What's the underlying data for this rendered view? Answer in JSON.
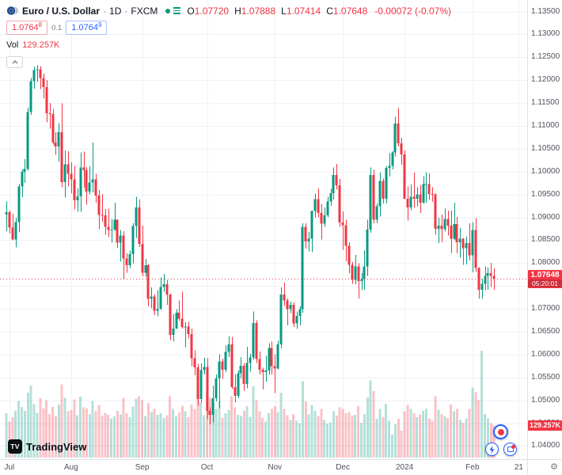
{
  "header": {
    "symbol": "Euro / U.S. Dollar",
    "separator": "·",
    "interval": "1D",
    "exchange": "FXCM",
    "ohlc": {
      "o_label": "O",
      "o": "1.07720",
      "h_label": "H",
      "h": "1.07888",
      "l_label": "L",
      "l": "1.07414",
      "c_label": "C",
      "c": "1.07648",
      "change": "-0.00072 (-0.07%)"
    }
  },
  "quote": {
    "bid": "1.0764",
    "bid_sup": "8",
    "spread": "0.1",
    "ask": "1.0764",
    "ask_sup": "9"
  },
  "volume_row": {
    "label": "Vol",
    "value": "129.257K"
  },
  "logo": {
    "mark": "TV",
    "text": "TradingView"
  },
  "chart_data": {
    "type": "candlestick",
    "title": "Euro / U.S. Dollar · 1D · FXCM",
    "symbol": "EUR/USD",
    "interval": "1D",
    "exchange": "FXCM",
    "last_price": 1.07648,
    "price_label": "1.07648",
    "countdown": "05:20:01",
    "volume_label": "129.257K",
    "last_volume_k": 129.257,
    "ylim": [
      1.0375,
      1.1375
    ],
    "grid": true,
    "legend_position": "top-left",
    "y_ticks": [
      "1.13500",
      "1.13000",
      "1.12500",
      "1.12000",
      "1.11500",
      "1.11000",
      "1.10500",
      "1.10000",
      "1.09500",
      "1.09000",
      "1.08500",
      "1.08000",
      "1.07500",
      "1.07000",
      "1.06500",
      "1.06000",
      "1.05500",
      "1.05000",
      "1.04500",
      "1.04000"
    ],
    "x_ticks": [
      {
        "label": "Jul",
        "index": 1
      },
      {
        "label": "Aug",
        "index": 21
      },
      {
        "label": "Sep",
        "index": 44
      },
      {
        "label": "Oct",
        "index": 65
      },
      {
        "label": "Nov",
        "index": 87
      },
      {
        "label": "Dec",
        "index": 109
      },
      {
        "label": "2024",
        "index": 129
      },
      {
        "label": "Feb",
        "index": 151
      },
      {
        "label": "21",
        "index": 166
      }
    ],
    "colors": {
      "up": "#089981",
      "down": "#f23645",
      "vol_up": "rgba(8,153,129,0.30)",
      "vol_down": "rgba(242,54,69,0.30)",
      "grid": "#eef1f6",
      "accent_blue": "#2962ff",
      "axis_text": "#50535e"
    },
    "candles": [
      [
        1.0906,
        1.0935,
        1.087,
        1.0911,
        178
      ],
      [
        1.0911,
        1.0915,
        1.0865,
        1.0878,
        145
      ],
      [
        1.0878,
        1.0908,
        1.085,
        1.0852,
        162
      ],
      [
        1.0852,
        1.0899,
        1.0834,
        1.089,
        190
      ],
      [
        1.089,
        1.0973,
        1.0867,
        1.0968,
        228
      ],
      [
        1.0968,
        1.1005,
        1.0944,
        1.1,
        205
      ],
      [
        1.1,
        1.1027,
        1.0975,
        1.1006,
        188
      ],
      [
        1.1006,
        1.114,
        1.1002,
        1.113,
        262
      ],
      [
        1.113,
        1.1205,
        1.1124,
        1.1198,
        291
      ],
      [
        1.1198,
        1.123,
        1.1181,
        1.1222,
        215
      ],
      [
        1.1222,
        1.1232,
        1.1196,
        1.1224,
        181
      ],
      [
        1.1224,
        1.1231,
        1.118,
        1.1205,
        240
      ],
      [
        1.1205,
        1.1215,
        1.116,
        1.1185,
        198
      ],
      [
        1.1185,
        1.12,
        1.1108,
        1.1128,
        232
      ],
      [
        1.1128,
        1.115,
        1.1094,
        1.1126,
        176
      ],
      [
        1.1126,
        1.1137,
        1.1059,
        1.1064,
        205
      ],
      [
        1.1064,
        1.1086,
        1.1037,
        1.1055,
        168
      ],
      [
        1.1055,
        1.1106,
        1.1022,
        1.1086,
        214
      ],
      [
        1.1086,
        1.1149,
        1.0966,
        1.0977,
        296
      ],
      [
        1.0977,
        1.1046,
        1.0943,
        1.1016,
        241
      ],
      [
        1.1016,
        1.1045,
        1.0968,
        1.0995,
        187
      ],
      [
        1.0995,
        1.102,
        1.0952,
        1.0983,
        192
      ],
      [
        1.0983,
        1.1013,
        1.0917,
        1.0937,
        234
      ],
      [
        1.0937,
        1.0963,
        1.0912,
        1.0946,
        171
      ],
      [
        1.0946,
        1.1042,
        1.0912,
        1.1009,
        246
      ],
      [
        1.1009,
        1.1044,
        1.0965,
        1.1003,
        203
      ],
      [
        1.1003,
        1.101,
        1.0928,
        1.0956,
        198
      ],
      [
        1.0956,
        1.1012,
        1.095,
        1.0976,
        176
      ],
      [
        1.0976,
        1.1064,
        1.0955,
        1.0983,
        229
      ],
      [
        1.0983,
        1.0995,
        1.0932,
        1.0948,
        187
      ],
      [
        1.0948,
        1.096,
        1.0874,
        1.0905,
        213
      ],
      [
        1.0905,
        1.0951,
        1.0891,
        1.0904,
        169
      ],
      [
        1.0904,
        1.0918,
        1.0862,
        1.0879,
        181
      ],
      [
        1.0879,
        1.0919,
        1.0857,
        1.0872,
        172
      ],
      [
        1.0872,
        1.0896,
        1.0845,
        1.0873,
        158
      ],
      [
        1.0873,
        1.0932,
        1.0871,
        1.0895,
        166
      ],
      [
        1.0895,
        1.0896,
        1.0833,
        1.0845,
        189
      ],
      [
        1.0845,
        1.0872,
        1.0803,
        1.086,
        174
      ],
      [
        1.086,
        1.087,
        1.0766,
        1.081,
        241
      ],
      [
        1.081,
        1.0821,
        1.0779,
        1.0795,
        178
      ],
      [
        1.0795,
        1.0827,
        1.0789,
        1.082,
        162
      ],
      [
        1.082,
        1.0887,
        1.08,
        1.0881,
        206
      ],
      [
        1.0881,
        1.0945,
        1.0855,
        1.0922,
        238
      ],
      [
        1.0922,
        1.0939,
        1.0835,
        1.0842,
        247
      ],
      [
        1.0842,
        1.0882,
        1.0771,
        1.0779,
        232
      ],
      [
        1.0779,
        1.0809,
        1.077,
        1.0795,
        168
      ],
      [
        1.0795,
        1.0798,
        1.0705,
        1.0722,
        221
      ],
      [
        1.0722,
        1.0747,
        1.0701,
        1.0727,
        183
      ],
      [
        1.0727,
        1.0731,
        1.0686,
        1.0696,
        196
      ],
      [
        1.0696,
        1.0741,
        1.0684,
        1.07,
        172
      ],
      [
        1.07,
        1.0769,
        1.0698,
        1.0748,
        178
      ],
      [
        1.0748,
        1.0776,
        1.0737,
        1.0754,
        159
      ],
      [
        1.0754,
        1.0763,
        1.0709,
        1.0731,
        171
      ],
      [
        1.0731,
        1.0733,
        1.0632,
        1.0643,
        248
      ],
      [
        1.0643,
        1.0688,
        1.0629,
        1.0657,
        196
      ],
      [
        1.0657,
        1.0699,
        1.0656,
        1.0692,
        167
      ],
      [
        1.0692,
        1.0718,
        1.0674,
        1.0679,
        182
      ],
      [
        1.0679,
        1.0737,
        1.0657,
        1.066,
        209
      ],
      [
        1.066,
        1.0671,
        1.0616,
        1.0661,
        187
      ],
      [
        1.0661,
        1.0672,
        1.0635,
        1.0645,
        163
      ],
      [
        1.0645,
        1.0657,
        1.0575,
        1.0592,
        214
      ],
      [
        1.0592,
        1.0609,
        1.0555,
        1.0572,
        196
      ],
      [
        1.0572,
        1.0579,
        1.0488,
        1.0503,
        259
      ],
      [
        1.0503,
        1.0581,
        1.0495,
        1.0566,
        224
      ],
      [
        1.0566,
        1.0593,
        1.0557,
        1.0573,
        171
      ],
      [
        1.0573,
        1.0592,
        1.0459,
        1.0477,
        272
      ],
      [
        1.0477,
        1.0485,
        1.0448,
        1.0468,
        241
      ],
      [
        1.0468,
        1.0532,
        1.0452,
        1.0505,
        219
      ],
      [
        1.0505,
        1.0557,
        1.0498,
        1.0548,
        196
      ],
      [
        1.0548,
        1.0601,
        1.0483,
        1.0585,
        228
      ],
      [
        1.0585,
        1.0591,
        1.0547,
        1.0567,
        160
      ],
      [
        1.0567,
        1.062,
        1.0562,
        1.0606,
        178
      ],
      [
        1.0606,
        1.064,
        1.0595,
        1.0622,
        191
      ],
      [
        1.0622,
        1.0639,
        1.0525,
        1.0529,
        247
      ],
      [
        1.0529,
        1.0557,
        1.0495,
        1.051,
        202
      ],
      [
        1.051,
        1.0565,
        1.0505,
        1.0559,
        173
      ],
      [
        1.0559,
        1.0595,
        1.0548,
        1.0576,
        168
      ],
      [
        1.0576,
        1.0582,
        1.0521,
        1.0536,
        189
      ],
      [
        1.0536,
        1.0617,
        1.0526,
        1.0582,
        207
      ],
      [
        1.0582,
        1.0602,
        1.0563,
        1.0594,
        164
      ],
      [
        1.0594,
        1.0694,
        1.0589,
        1.0669,
        287
      ],
      [
        1.0669,
        1.0675,
        1.0582,
        1.059,
        232
      ],
      [
        1.059,
        1.0607,
        1.0557,
        1.0567,
        187
      ],
      [
        1.0567,
        1.0571,
        1.0524,
        1.0562,
        159
      ],
      [
        1.0562,
        1.0597,
        1.0541,
        1.0565,
        146
      ],
      [
        1.0565,
        1.0625,
        1.0556,
        1.0615,
        181
      ],
      [
        1.0615,
        1.0628,
        1.0557,
        1.0575,
        196
      ],
      [
        1.0575,
        1.0601,
        1.0516,
        1.057,
        207
      ],
      [
        1.057,
        1.0631,
        1.0568,
        1.0622,
        183
      ],
      [
        1.0622,
        1.0747,
        1.0614,
        1.0731,
        262
      ],
      [
        1.0731,
        1.0757,
        1.0706,
        1.0718,
        196
      ],
      [
        1.0718,
        1.0723,
        1.0664,
        1.0699,
        171
      ],
      [
        1.0699,
        1.0716,
        1.0691,
        1.0709,
        152
      ],
      [
        1.0709,
        1.0714,
        1.066,
        1.0668,
        176
      ],
      [
        1.0668,
        1.0694,
        1.0656,
        1.0685,
        148
      ],
      [
        1.0685,
        1.0705,
        1.0664,
        1.0699,
        139
      ],
      [
        1.0699,
        1.0887,
        1.0692,
        1.0879,
        308
      ],
      [
        1.0879,
        1.0887,
        1.0832,
        1.0847,
        226
      ],
      [
        1.0847,
        1.0868,
        1.0826,
        1.0853,
        174
      ],
      [
        1.0853,
        1.0915,
        1.0824,
        1.0914,
        213
      ],
      [
        1.0914,
        1.0952,
        1.0899,
        1.094,
        189
      ],
      [
        1.094,
        1.0963,
        1.09,
        1.091,
        167
      ],
      [
        1.091,
        1.0929,
        1.0852,
        1.0886,
        196
      ],
      [
        1.0886,
        1.0922,
        1.0879,
        1.0904,
        152
      ],
      [
        1.0904,
        1.0945,
        1.09,
        1.0935,
        138
      ],
      [
        1.0935,
        1.0962,
        1.0925,
        1.0953,
        142
      ],
      [
        1.0953,
        1.1009,
        1.0939,
        1.0993,
        187
      ],
      [
        1.0993,
        1.1017,
        1.0961,
        1.097,
        169
      ],
      [
        1.097,
        1.0984,
        1.0879,
        1.0889,
        203
      ],
      [
        1.0889,
        1.0913,
        1.0829,
        1.0883,
        196
      ],
      [
        1.0883,
        1.0895,
        1.0804,
        1.0838,
        178
      ],
      [
        1.0838,
        1.0846,
        1.0778,
        1.0796,
        184
      ],
      [
        1.0796,
        1.0802,
        1.0755,
        1.0763,
        169
      ],
      [
        1.0763,
        1.0818,
        1.0754,
        1.0793,
        172
      ],
      [
        1.0793,
        1.08,
        1.0723,
        1.0761,
        208
      ],
      [
        1.0761,
        1.0778,
        1.0741,
        1.0764,
        141
      ],
      [
        1.0764,
        1.0827,
        1.0742,
        1.0793,
        176
      ],
      [
        1.0793,
        1.0895,
        1.0772,
        1.0873,
        243
      ],
      [
        1.0873,
        1.1009,
        1.0866,
        1.0993,
        312
      ],
      [
        1.0993,
        1.1004,
        1.0887,
        1.0895,
        268
      ],
      [
        1.0895,
        1.093,
        1.0887,
        1.0924,
        157
      ],
      [
        1.0924,
        1.0998,
        1.0902,
        1.098,
        196
      ],
      [
        1.098,
        1.0985,
        1.093,
        1.0941,
        162
      ],
      [
        1.0941,
        1.1012,
        1.093,
        1.1008,
        217
      ],
      [
        1.1008,
        1.104,
        1.0989,
        1.1013,
        148
      ],
      [
        1.1013,
        1.1045,
        1.1005,
        1.1042,
        92
      ],
      [
        1.1042,
        1.112,
        1.1033,
        1.1105,
        134
      ],
      [
        1.1105,
        1.1139,
        1.1055,
        1.1062,
        157
      ],
      [
        1.1062,
        1.1074,
        1.1015,
        1.1038,
        109
      ],
      [
        1.1038,
        1.1046,
        1.094,
        1.0941,
        187
      ],
      [
        1.0941,
        1.0968,
        1.0893,
        1.0922,
        213
      ],
      [
        1.0922,
        1.0972,
        1.0916,
        1.0945,
        196
      ],
      [
        1.0945,
        1.0998,
        1.0921,
        1.0941,
        178
      ],
      [
        1.0941,
        1.0966,
        1.0924,
        1.095,
        162
      ],
      [
        1.095,
        1.097,
        1.091,
        1.0932,
        174
      ],
      [
        1.0932,
        1.099,
        1.093,
        1.0973,
        189
      ],
      [
        1.0973,
        1.0999,
        1.0932,
        1.0973,
        196
      ],
      [
        1.0973,
        1.0996,
        1.0938,
        1.0951,
        158
      ],
      [
        1.0951,
        1.0966,
        1.0934,
        1.095,
        149
      ],
      [
        1.095,
        1.0953,
        1.0862,
        1.0875,
        247
      ],
      [
        1.0875,
        1.0899,
        1.0844,
        1.0882,
        193
      ],
      [
        1.0882,
        1.0906,
        1.0846,
        1.0874,
        176
      ],
      [
        1.0874,
        1.0919,
        1.0869,
        1.0897,
        168
      ],
      [
        1.0897,
        1.0915,
        1.086,
        1.0882,
        159
      ],
      [
        1.0882,
        1.0915,
        1.0822,
        1.0853,
        214
      ],
      [
        1.0853,
        1.0932,
        1.0851,
        1.0885,
        187
      ],
      [
        1.0885,
        1.0901,
        1.0821,
        1.0846,
        196
      ],
      [
        1.0846,
        1.0877,
        1.0812,
        1.0853,
        152
      ],
      [
        1.0853,
        1.0855,
        1.0796,
        1.0833,
        141
      ],
      [
        1.0833,
        1.0858,
        1.0797,
        1.0844,
        158
      ],
      [
        1.0844,
        1.0887,
        1.0806,
        1.0817,
        196
      ],
      [
        1.0817,
        1.089,
        1.078,
        1.0872,
        282
      ],
      [
        1.0872,
        1.0898,
        1.0781,
        1.0789,
        264
      ],
      [
        1.0789,
        1.0791,
        1.0723,
        1.0742,
        231
      ],
      [
        1.0742,
        1.0765,
        1.0722,
        1.0755,
        431
      ],
      [
        1.0755,
        1.0793,
        1.0741,
        1.0772,
        176
      ],
      [
        1.0772,
        1.079,
        1.0742,
        1.0778,
        158
      ],
      [
        1.0778,
        1.0801,
        1.0748,
        1.0772,
        139
      ],
      [
        1.0772,
        1.07888,
        1.07414,
        1.07648,
        129.257
      ]
    ]
  }
}
